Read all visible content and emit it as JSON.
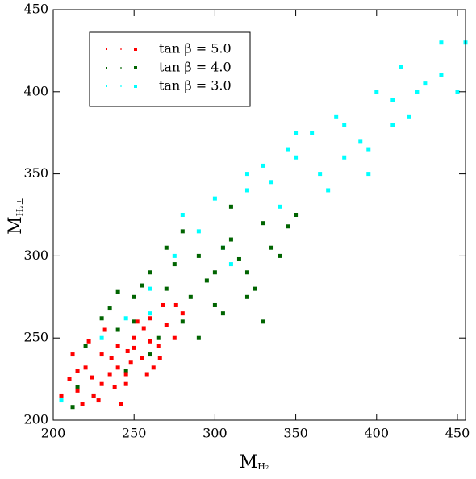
{
  "chart_data": {
    "type": "scatter",
    "xlabel": "M",
    "xlabel_sub": "H₂",
    "ylabel": "M",
    "ylabel_sub": "H₂±",
    "xlim": [
      200,
      455
    ],
    "ylim": [
      200,
      450
    ],
    "xticks": [
      200,
      250,
      300,
      350,
      400,
      450
    ],
    "yticks": [
      200,
      250,
      300,
      350,
      400,
      450
    ],
    "legend": "upper left",
    "series": [
      {
        "name": "tan β = 5.0",
        "color": "#ff0000",
        "x": [
          210,
          215,
          220,
          225,
          230,
          235,
          240,
          245,
          250,
          255,
          260,
          265,
          270,
          275,
          280,
          218,
          228,
          238,
          248,
          258,
          268,
          222,
          232,
          242,
          252,
          262,
          205,
          212,
          224,
          236,
          246,
          256,
          266,
          276,
          240,
          250,
          230,
          260,
          215,
          245
        ],
        "values": [
          225,
          218,
          232,
          215,
          240,
          228,
          245,
          222,
          250,
          238,
          262,
          245,
          258,
          250,
          265,
          210,
          212,
          220,
          235,
          228,
          270,
          248,
          255,
          210,
          260,
          232,
          215,
          240,
          226,
          238,
          242,
          256,
          238,
          270,
          232,
          244,
          222,
          248,
          230,
          228
        ]
      },
      {
        "name": "tan β = 4.0",
        "color": "#006400",
        "x": [
          212,
          220,
          230,
          240,
          250,
          260,
          270,
          280,
          290,
          300,
          310,
          320,
          330,
          340,
          350,
          225,
          235,
          245,
          255,
          265,
          275,
          285,
          295,
          305,
          315,
          325,
          335,
          345,
          280,
          300,
          310,
          290,
          320,
          270,
          260,
          250,
          240,
          305,
          330,
          215
        ],
        "values": [
          208,
          245,
          262,
          255,
          275,
          240,
          280,
          260,
          300,
          270,
          310,
          290,
          320,
          300,
          325,
          215,
          268,
          230,
          282,
          250,
          295,
          275,
          285,
          265,
          298,
          280,
          305,
          318,
          315,
          290,
          330,
          250,
          275,
          305,
          290,
          260,
          278,
          305,
          260,
          220
        ]
      },
      {
        "name": "tan β = 3.0",
        "color": "#00ffff",
        "x": [
          205,
          215,
          230,
          245,
          260,
          275,
          290,
          305,
          320,
          335,
          350,
          365,
          380,
          395,
          410,
          425,
          440,
          455,
          300,
          320,
          340,
          360,
          380,
          400,
          420,
          440,
          350,
          370,
          390,
          410,
          430,
          280,
          310,
          330,
          345,
          375,
          395,
          415,
          450,
          260
        ],
        "values": [
          212,
          230,
          250,
          262,
          280,
          300,
          315,
          305,
          340,
          345,
          360,
          350,
          380,
          365,
          395,
          400,
          430,
          430,
          335,
          350,
          330,
          375,
          360,
          400,
          385,
          410,
          375,
          340,
          370,
          380,
          405,
          325,
          295,
          355,
          365,
          385,
          350,
          415,
          400,
          265
        ]
      }
    ]
  }
}
